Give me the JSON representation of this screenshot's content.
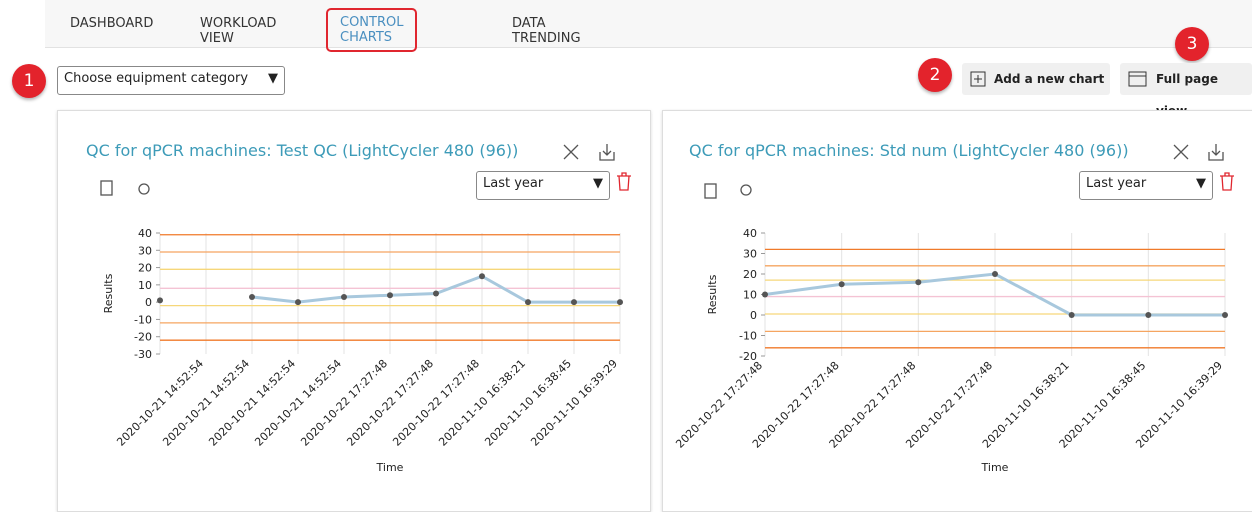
{
  "nav": {
    "tabs": [
      "DASHBOARD",
      "WORKLOAD VIEW",
      "CONTROL CHARTS",
      "DATA TRENDING"
    ],
    "active": 2
  },
  "badges": [
    "1",
    "2",
    "3"
  ],
  "category_select": "Choose equipment category",
  "buttons": [
    "Add a new chart",
    "Full page view"
  ],
  "charts": [
    {
      "type": "line",
      "title": "QC for qPCR machines: Test QC (LightCycler 480 (96))",
      "period": "Last year",
      "y_label": "Results",
      "x_label": "Time",
      "categories": [
        null,
        "2020-10-21 14:52:54",
        "2020-10-21 14:52:54",
        "2020-10-21 14:52:54",
        "2020-10-21 14:52:54",
        "2020-10-22 17:27:48",
        "2020-10-22 17:27:48",
        "2020-10-22 17:27:48",
        "2020-11-10 16:38:21",
        "2020-11-10 16:38:45",
        "2020-11-10 16:39:29"
      ],
      "values": [
        1,
        null,
        3,
        0,
        3,
        4,
        5,
        15,
        0,
        0,
        0
      ],
      "color": "#a8c8dd",
      "ylim": [
        -30,
        40
      ],
      "yticks": [
        -30,
        -20,
        -10,
        0,
        10,
        20,
        30,
        40
      ],
      "limits": [
        {
          "value": 39,
          "color": "#f07a2a"
        },
        {
          "value": 29,
          "color": "#f5a561"
        },
        {
          "value": 19,
          "color": "#f6d77a"
        },
        {
          "value": 8,
          "color": "#f4c3d4"
        },
        {
          "value": -2,
          "color": "#f6d77a"
        },
        {
          "value": -12,
          "color": "#f5a561"
        },
        {
          "value": -22,
          "color": "#f07a2a"
        }
      ]
    },
    {
      "type": "line",
      "title": "QC for qPCR machines: Std num (LightCycler 480 (96))",
      "period": "Last year",
      "y_label": "Results",
      "x_label": "Time",
      "categories": [
        "2020-10-22 17:27:48",
        "2020-10-22 17:27:48",
        "2020-10-22 17:27:48",
        "2020-10-22 17:27:48",
        "2020-11-10 16:38:21",
        "2020-11-10 16:38:45",
        "2020-11-10 16:39:29"
      ],
      "values": [
        10,
        15,
        16,
        20,
        0,
        0,
        0
      ],
      "color": "#a8c8dd",
      "ylim": [
        -20,
        40
      ],
      "yticks": [
        -20,
        -10,
        0,
        10,
        20,
        30,
        40
      ],
      "limits": [
        {
          "value": 32,
          "color": "#f07a2a"
        },
        {
          "value": 24,
          "color": "#f5a561"
        },
        {
          "value": 17,
          "color": "#f6d77a"
        },
        {
          "value": 9,
          "color": "#f4c3d4"
        },
        {
          "value": 0.5,
          "color": "#f6d77a"
        },
        {
          "value": -8,
          "color": "#f5a561"
        },
        {
          "value": -16,
          "color": "#f07a2a"
        }
      ]
    }
  ]
}
